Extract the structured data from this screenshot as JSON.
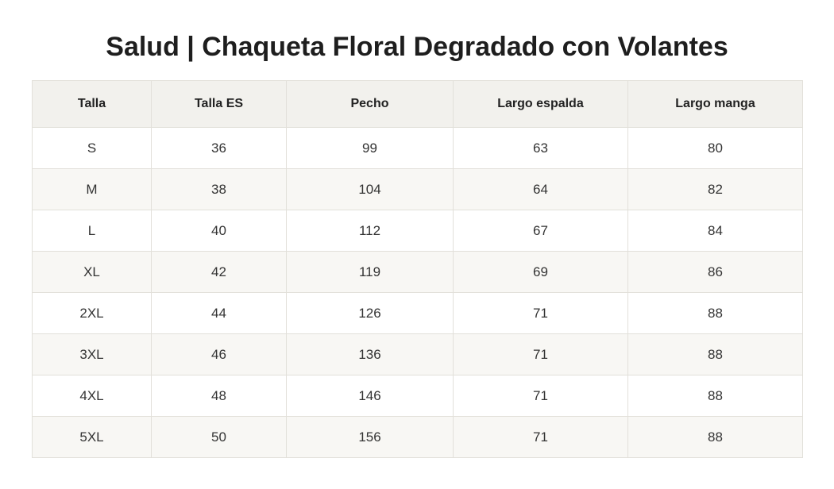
{
  "title": "Salud | Chaqueta Floral Degradado con Volantes",
  "table": {
    "headers": [
      "Talla",
      "Talla ES",
      "Pecho",
      "Largo espalda",
      "Largo manga"
    ],
    "rows": [
      [
        "S",
        "36",
        "99",
        "63",
        "80"
      ],
      [
        "M",
        "38",
        "104",
        "64",
        "82"
      ],
      [
        "L",
        "40",
        "112",
        "67",
        "84"
      ],
      [
        "XL",
        "42",
        "119",
        "69",
        "86"
      ],
      [
        "2XL",
        "44",
        "126",
        "71",
        "88"
      ],
      [
        "3XL",
        "46",
        "136",
        "71",
        "88"
      ],
      [
        "4XL",
        "48",
        "146",
        "71",
        "88"
      ],
      [
        "5XL",
        "50",
        "156",
        "71",
        "88"
      ]
    ]
  },
  "colors": {
    "header_bg": "#f2f1ed",
    "alt_row_bg": "#f8f7f4",
    "border": "#e2e0da"
  }
}
